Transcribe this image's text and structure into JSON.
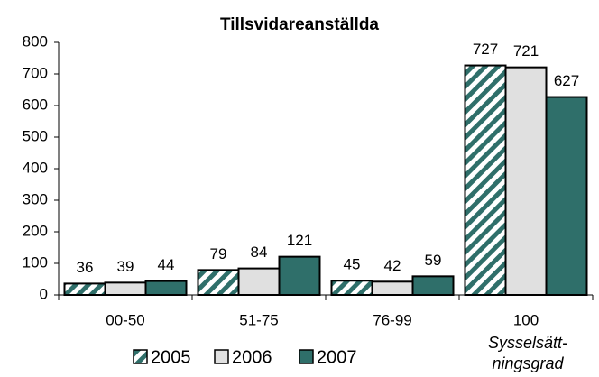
{
  "chart_data": {
    "type": "bar",
    "title": "Tillsvidareanställda",
    "categories": [
      "00-50",
      "51-75",
      "76-99",
      "100"
    ],
    "x_label": [
      "Sysselsätt-",
      "ningsgrad"
    ],
    "series": [
      {
        "name": "2005",
        "color": "#2f6f6a",
        "pattern": "hatch",
        "values": [
          36,
          79,
          45,
          727
        ]
      },
      {
        "name": "2006",
        "color": "#e0e0e0",
        "values": [
          39,
          84,
          42,
          721
        ]
      },
      {
        "name": "2007",
        "color": "#2f6f6a",
        "values": [
          44,
          121,
          59,
          627
        ]
      }
    ],
    "ylim": [
      0,
      800
    ],
    "yticks": [
      0,
      100,
      200,
      300,
      400,
      500,
      600,
      700,
      800
    ],
    "grid": false,
    "legend": "bottom"
  }
}
